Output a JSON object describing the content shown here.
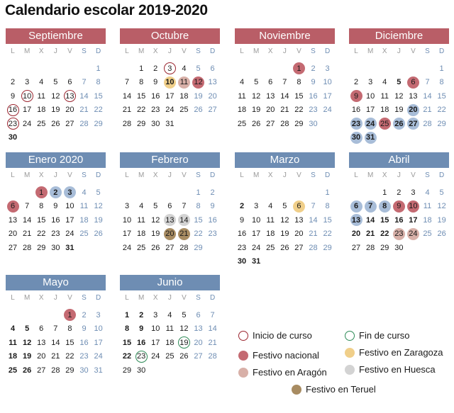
{
  "title": "Calendario escolar 2019-2020",
  "weekdays": [
    "L",
    "M",
    "X",
    "J",
    "V",
    "S",
    "D"
  ],
  "months": [
    {
      "name": "Septiembre",
      "color": "red",
      "offset": 6,
      "days": 30,
      "marks": {
        "10": "inicio",
        "13": "inicio",
        "16": "inicio",
        "23": "inicio"
      },
      "bold": [
        30
      ]
    },
    {
      "name": "Octubre",
      "color": "red",
      "offset": 1,
      "days": 31,
      "marks": {
        "3": "inicio",
        "10": "zaragoza",
        "11": "aragon",
        "12": "nacional"
      },
      "bold": [
        10
      ]
    },
    {
      "name": "Noviembre",
      "color": "red",
      "offset": 4,
      "days": 30,
      "marks": {
        "1": "nacional"
      },
      "bold": []
    },
    {
      "name": "Diciembre",
      "color": "red",
      "offset": 6,
      "days": 31,
      "marks": {
        "6": "nacional",
        "9": "nacional",
        "20": "blue",
        "23": "blue",
        "24": "blue",
        "25": "nacional",
        "26": "blue",
        "27": "blue",
        "30": "blue",
        "31": "blue"
      },
      "bold": [
        5
      ]
    },
    {
      "name": "Enero 2020",
      "color": "blue",
      "offset": 2,
      "days": 31,
      "marks": {
        "1": "nacional",
        "2": "blue",
        "3": "blue",
        "6": "nacional"
      },
      "bold": [
        31
      ]
    },
    {
      "name": "Febrero",
      "color": "blue",
      "offset": 5,
      "days": 29,
      "marks": {
        "13": "huesca",
        "14": "huesca",
        "20": "teruel",
        "21": "teruel"
      },
      "bold": []
    },
    {
      "name": "Marzo",
      "color": "blue",
      "offset": 6,
      "days": 31,
      "marks": {
        "6": "zaragoza"
      },
      "bold": [
        2,
        30,
        31
      ]
    },
    {
      "name": "Abril",
      "color": "blue",
      "offset": 2,
      "days": 30,
      "marks": {
        "6": "blue",
        "7": "blue",
        "8": "blue",
        "9": "nacional",
        "10": "nacional",
        "13": "blue",
        "23": "aragon",
        "24": "aragon"
      },
      "bold": [
        14,
        15,
        16,
        17,
        20,
        21,
        22
      ]
    },
    {
      "name": "Mayo",
      "color": "blue",
      "offset": 4,
      "days": 31,
      "marks": {
        "1": "nacional"
      },
      "bold": [
        4,
        5,
        11,
        12,
        18,
        19,
        25,
        26
      ]
    },
    {
      "name": "Junio",
      "color": "blue",
      "offset": 0,
      "days": 30,
      "marks": {
        "19": "fin",
        "23": "fin"
      },
      "bold": [
        1,
        2,
        8,
        9,
        15,
        16,
        22
      ]
    }
  ],
  "legend": [
    {
      "label": "Inicio de curso",
      "kind": "inicio"
    },
    {
      "label": "Fin de curso",
      "kind": "fin"
    },
    {
      "label": "Festivo nacional",
      "kind": "nacional"
    },
    {
      "label": "Festivo en Zaragoza",
      "kind": "zaragoza"
    },
    {
      "label": "Festivo en Aragón",
      "kind": "aragon"
    },
    {
      "label": "Festivo en Huesca",
      "kind": "huesca"
    },
    {
      "label": "Festivo en Teruel",
      "kind": "teruel"
    }
  ]
}
